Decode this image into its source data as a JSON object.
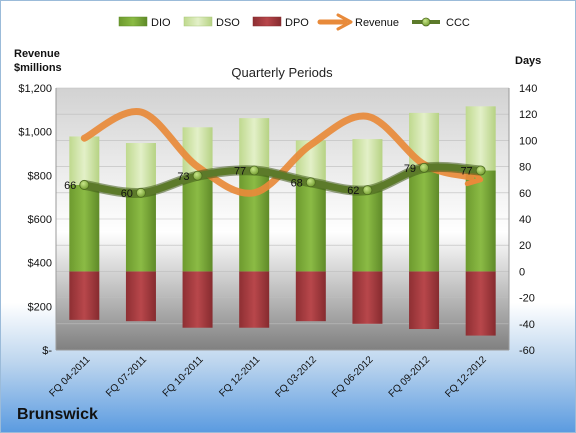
{
  "company": "Brunswick",
  "chart_data": {
    "type": "bar",
    "title": "Quarterly Periods",
    "left_axis_title": [
      "Revenue",
      "$millions"
    ],
    "right_axis_title": "Days",
    "categories": [
      "FQ 04-2011",
      "FQ 07-2011",
      "FQ 10-2011",
      "FQ 12-2011",
      "FQ 03-2012",
      "FQ 06-2012",
      "FQ 09-2012",
      "FQ 12-2012"
    ],
    "left_ticks": [
      "$-",
      "$200",
      "$400",
      "$600",
      "$800",
      "$1,000",
      "$1,200"
    ],
    "right_ticks": [
      "-60",
      "-40",
      "-20",
      "0",
      "20",
      "40",
      "60",
      "80",
      "100",
      "120",
      "140"
    ],
    "left_range": [
      0,
      1200
    ],
    "right_range": [
      -60,
      140
    ],
    "legend_position": "top",
    "legend": [
      "DIO",
      "DSO",
      "DPO",
      "Revenue",
      "CCC"
    ],
    "series": [
      {
        "name": "DIO",
        "axis": "right",
        "kind": "bar",
        "color": "#7aa33a",
        "values": [
          66,
          60,
          73,
          77,
          68,
          62,
          79,
          77
        ]
      },
      {
        "name": "DSO",
        "axis": "right",
        "kind": "bar",
        "color": "#cde4a3",
        "values": [
          37,
          38,
          37,
          40,
          32,
          39,
          42,
          49
        ]
      },
      {
        "name": "DPO",
        "axis": "right",
        "kind": "bar",
        "color": "#a33a3d",
        "values": [
          37,
          38,
          43,
          43,
          38,
          40,
          44,
          49
        ]
      },
      {
        "name": "Revenue",
        "axis": "left",
        "kind": "line",
        "color": "#e88a3a",
        "values": [
          970,
          1090,
          840,
          720,
          940,
          1070,
          850,
          780
        ]
      },
      {
        "name": "CCC",
        "axis": "right",
        "kind": "line",
        "color": "#5c7a2a",
        "values": [
          66,
          60,
          73,
          77,
          68,
          62,
          79,
          77
        ]
      }
    ],
    "ccc_labels": [
      "66",
      "60",
      "73",
      "77",
      "68",
      "62",
      "79",
      "77"
    ]
  }
}
